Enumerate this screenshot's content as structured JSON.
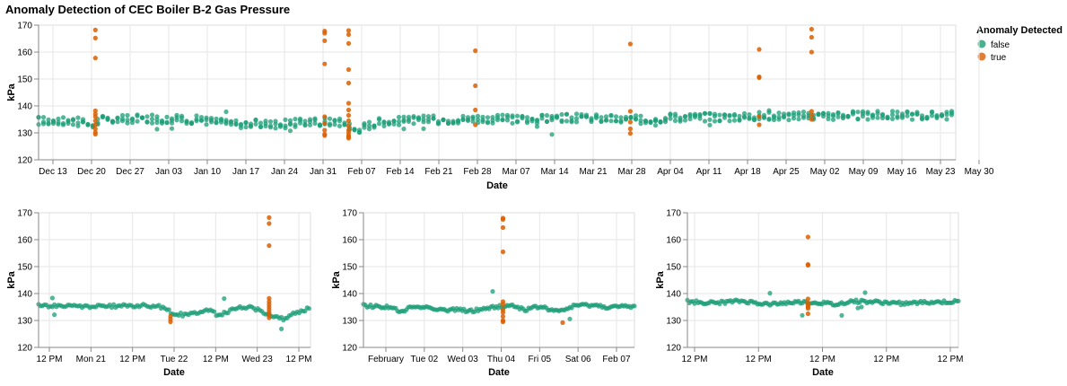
{
  "title": "Anomaly Detection of CEC Boiler B-2 Gas Pressure",
  "legend": {
    "title": "Anomaly Detected",
    "placement": "top-right",
    "entries": [
      {
        "label": "false",
        "color": "#1b9e77"
      },
      {
        "label": "true",
        "color": "#d95f02"
      }
    ]
  },
  "chart_data": [
    {
      "type": "scatter",
      "id": "overview",
      "xlabel": "Date",
      "ylabel": "kPa",
      "ylim": [
        120,
        170
      ],
      "yticks": [
        120,
        130,
        140,
        150,
        160,
        170
      ],
      "grid": true,
      "x_ticks": [
        "Dec 13",
        "Dec 20",
        "Dec 27",
        "Jan 03",
        "Jan 10",
        "Jan 17",
        "Jan 24",
        "Jan 31",
        "Feb 07",
        "Feb 14",
        "Feb 21",
        "Feb 28",
        "Mar 07",
        "Mar 14",
        "Mar 21",
        "Mar 28",
        "Apr 04",
        "Apr 11",
        "Apr 18",
        "Apr 25",
        "May 02",
        "May 09",
        "May 16",
        "May 23",
        "May 30"
      ],
      "baseline": [
        [
          0,
          134.5
        ],
        [
          3,
          134.5
        ],
        [
          5,
          133.0
        ],
        [
          5.5,
          134.8
        ],
        [
          9,
          135.2
        ],
        [
          14,
          135.0
        ],
        [
          18,
          133.5
        ],
        [
          22,
          133.2
        ],
        [
          26,
          134.2
        ],
        [
          28,
          133.8
        ],
        [
          29,
          131.0
        ],
        [
          30,
          132.5
        ],
        [
          31,
          134.0
        ],
        [
          35,
          134.8
        ],
        [
          40,
          135.2
        ],
        [
          45,
          135.0
        ],
        [
          50,
          135.6
        ],
        [
          55,
          134.8
        ],
        [
          58,
          135.8
        ],
        [
          62,
          135.8
        ],
        [
          66,
          136.2
        ],
        [
          71,
          136.3
        ],
        [
          78,
          136.5
        ],
        [
          84,
          136.5
        ]
      ],
      "anomalies": [
        {
          "x": 5.2,
          "y": [
            168.2,
            165.2,
            157.8,
            138.2,
            137.0,
            136.0,
            134.5,
            133.0,
            131.5,
            130.2,
            129.5
          ]
        },
        {
          "x": 26.2,
          "y": [
            167.8,
            167.0,
            164.2,
            155.6,
            136.0,
            133.5,
            131.0,
            129.5,
            129.0
          ]
        },
        {
          "x": 28.4,
          "y": [
            168.0,
            166.5,
            163.2,
            153.5,
            148.5,
            141.0,
            138.5,
            136.5,
            134.5,
            132.5,
            131.0,
            130.0,
            129.0,
            128.5,
            128.0
          ]
        },
        {
          "x": 40.0,
          "y": [
            160.5,
            147.5,
            138.5,
            133.0
          ]
        },
        {
          "x": 54.2,
          "y": [
            163.0,
            138.0,
            134.0,
            131.5,
            129.8
          ]
        },
        {
          "x": 66.0,
          "y": [
            161.0,
            150.8,
            150.5,
            136.0,
            133.0
          ]
        },
        {
          "x": 70.8,
          "y": [
            168.5,
            165.5,
            160.0,
            138.0,
            136.5,
            135.0
          ]
        }
      ]
    },
    {
      "type": "scatter",
      "id": "detail-1",
      "xlabel": "Date",
      "ylabel": "kPa",
      "ylim": [
        120,
        170
      ],
      "yticks": [
        120,
        130,
        140,
        150,
        160,
        170
      ],
      "grid": true,
      "x_ticks": [
        "12 PM",
        "Mon 21",
        "12 PM",
        "Tue 22",
        "12 PM",
        "Wed 23",
        "12 PM"
      ],
      "baseline": [
        [
          0,
          135.5
        ],
        [
          20,
          135.2
        ],
        [
          40,
          135.6
        ],
        [
          45,
          135.0
        ],
        [
          50,
          132.5
        ],
        [
          54,
          132.0
        ],
        [
          58,
          133.0
        ],
        [
          62,
          134.0
        ],
        [
          66,
          132.0
        ],
        [
          70,
          133.5
        ],
        [
          74,
          134.8
        ],
        [
          78,
          135.0
        ],
        [
          82,
          133.5
        ],
        [
          86,
          131.5
        ],
        [
          90,
          130.5
        ],
        [
          94,
          132.5
        ],
        [
          100,
          134.8
        ]
      ],
      "anomalies": [
        {
          "x": 48.5,
          "y": [
            131.5,
            130.5,
            129.5
          ]
        },
        {
          "x": 84.8,
          "y": [
            168.2,
            166.0,
            157.8,
            138.2,
            137.0,
            136.0,
            135.0,
            134.0,
            133.0,
            132.0,
            131.0
          ]
        }
      ]
    },
    {
      "type": "scatter",
      "id": "detail-2",
      "xlabel": "Date",
      "ylabel": "kPa",
      "ylim": [
        120,
        170
      ],
      "yticks": [
        120,
        130,
        140,
        150,
        160,
        170
      ],
      "grid": true,
      "x_ticks": [
        "February",
        "Tue 02",
        "Wed 03",
        "Thu 04",
        "Fri 05",
        "Sat 06",
        "Feb 07"
      ],
      "baseline": [
        [
          0,
          135.5
        ],
        [
          10,
          135.0
        ],
        [
          14,
          133.0
        ],
        [
          18,
          135.2
        ],
        [
          25,
          134.8
        ],
        [
          30,
          133.8
        ],
        [
          35,
          134.0
        ],
        [
          40,
          133.5
        ],
        [
          45,
          134.5
        ],
        [
          50,
          135.2
        ],
        [
          55,
          135.5
        ],
        [
          60,
          134.0
        ],
        [
          65,
          135.2
        ],
        [
          72,
          133.2
        ],
        [
          78,
          135.5
        ],
        [
          84,
          135.8
        ],
        [
          90,
          135.0
        ],
        [
          100,
          135.2
        ]
      ],
      "anomalies": [
        {
          "x": 51.5,
          "y": [
            168.0,
            167.5,
            164.5,
            155.5,
            137.0,
            136.0,
            134.0,
            133.0,
            131.5,
            130.0,
            129.5
          ]
        },
        {
          "x": 73.5,
          "y": [
            129.2
          ]
        }
      ]
    },
    {
      "type": "scatter",
      "id": "detail-3",
      "xlabel": "Date",
      "ylabel": "kPa",
      "ylim": [
        120,
        170
      ],
      "yticks": [
        120,
        130,
        140,
        150,
        160,
        170
      ],
      "grid": true,
      "x_ticks": [
        "12 PM",
        "12 PM",
        "12 PM",
        "12 PM",
        "12 PM"
      ],
      "baseline": [
        [
          0,
          137.0
        ],
        [
          10,
          136.5
        ],
        [
          20,
          137.2
        ],
        [
          30,
          136.0
        ],
        [
          40,
          136.8
        ],
        [
          50,
          136.5
        ],
        [
          55,
          135.8
        ],
        [
          60,
          137.2
        ],
        [
          70,
          136.8
        ],
        [
          80,
          136.3
        ],
        [
          90,
          136.8
        ],
        [
          100,
          136.9
        ]
      ],
      "anomalies": [
        {
          "x": 44.5,
          "y": [
            161.0,
            150.8,
            150.5,
            138.0,
            136.5,
            135.5,
            135.0,
            134.5,
            132.5
          ]
        }
      ]
    }
  ]
}
